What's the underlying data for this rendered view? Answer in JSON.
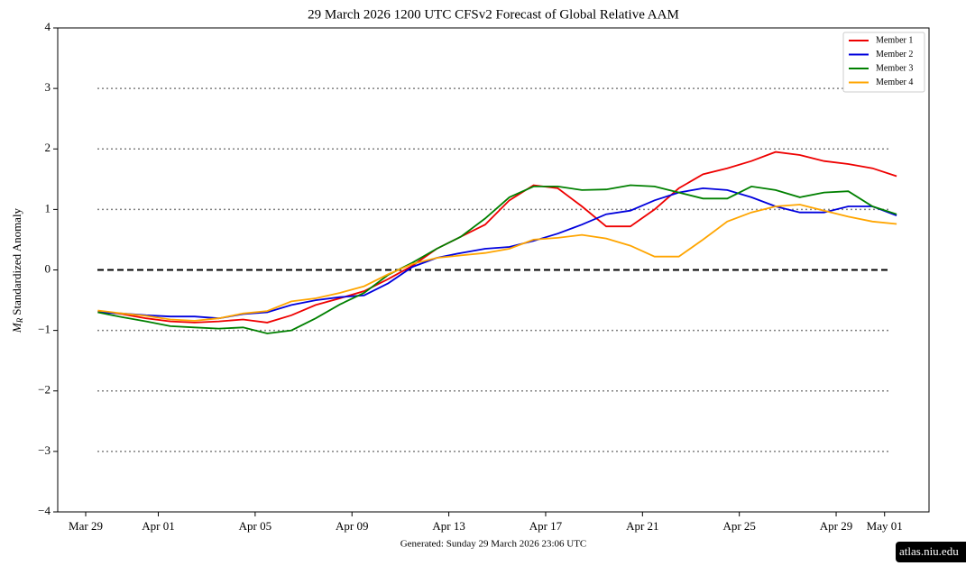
{
  "chart_data": {
    "type": "line",
    "title": "29  March  2026 1200 UTC   CFSv2 Forecast of Global Relative AAM",
    "footer": "Generated: Sunday  29  March  2026  23:06 UTC",
    "badge": "atlas.niu.edu",
    "ylabel": {
      "symbol": "M",
      "subscript": "R",
      "text": "Standardized Anomaly"
    },
    "x": [
      "Mar 29",
      "Mar 30",
      "Mar 31",
      "Apr 01",
      "Apr 02",
      "Apr 03",
      "Apr 04",
      "Apr 05",
      "Apr 06",
      "Apr 07",
      "Apr 08",
      "Apr 09",
      "Apr 10",
      "Apr 11",
      "Apr 12",
      "Apr 13",
      "Apr 14",
      "Apr 15",
      "Apr 16",
      "Apr 17",
      "Apr 18",
      "Apr 19",
      "Apr 20",
      "Apr 21",
      "Apr 22",
      "Apr 23",
      "Apr 24",
      "Apr 25",
      "Apr 26",
      "Apr 27",
      "Apr 28",
      "Apr 29",
      "Apr 30",
      "May 01"
    ],
    "xticks": [
      "Mar 29",
      "Apr 01",
      "Apr 05",
      "Apr 09",
      "Apr 13",
      "Apr 17",
      "Apr 21",
      "Apr 25",
      "Apr 29",
      "May 01"
    ],
    "series": [
      {
        "name": "Member 1",
        "color": "#ee0000",
        "values": [
          -0.68,
          -0.73,
          -0.8,
          -0.85,
          -0.87,
          -0.85,
          -0.82,
          -0.87,
          -0.75,
          -0.58,
          -0.47,
          -0.35,
          -0.15,
          0.07,
          0.35,
          0.55,
          0.75,
          1.15,
          1.4,
          1.35,
          1.05,
          0.72,
          0.72,
          1.0,
          1.35,
          1.58,
          1.68,
          1.8,
          1.95,
          1.9,
          1.8,
          1.75,
          1.68,
          1.55
        ]
      },
      {
        "name": "Member 2",
        "color": "#0000dd",
        "values": [
          -0.7,
          -0.72,
          -0.75,
          -0.77,
          -0.77,
          -0.8,
          -0.73,
          -0.7,
          -0.58,
          -0.5,
          -0.45,
          -0.42,
          -0.22,
          0.05,
          0.2,
          0.28,
          0.35,
          0.38,
          0.48,
          0.6,
          0.75,
          0.92,
          0.98,
          1.15,
          1.28,
          1.35,
          1.32,
          1.2,
          1.05,
          0.95,
          0.95,
          1.05,
          1.05,
          0.9
        ]
      },
      {
        "name": "Member 3",
        "color": "#008000",
        "values": [
          -0.7,
          -0.78,
          -0.85,
          -0.93,
          -0.95,
          -0.97,
          -0.95,
          -1.05,
          -1.0,
          -0.8,
          -0.57,
          -0.38,
          -0.08,
          0.12,
          0.35,
          0.55,
          0.85,
          1.2,
          1.38,
          1.38,
          1.32,
          1.33,
          1.4,
          1.38,
          1.28,
          1.18,
          1.18,
          1.38,
          1.32,
          1.2,
          1.28,
          1.3,
          1.05,
          0.92
        ]
      },
      {
        "name": "Member 4",
        "color": "#ffa500",
        "values": [
          -0.67,
          -0.72,
          -0.76,
          -0.82,
          -0.84,
          -0.8,
          -0.72,
          -0.68,
          -0.52,
          -0.47,
          -0.38,
          -0.27,
          -0.07,
          0.1,
          0.2,
          0.24,
          0.28,
          0.35,
          0.5,
          0.53,
          0.58,
          0.52,
          0.4,
          0.22,
          0.22,
          0.5,
          0.8,
          0.95,
          1.05,
          1.08,
          0.98,
          0.88,
          0.8,
          0.76
        ]
      }
    ],
    "ylim": [
      -4,
      4
    ],
    "yticks": [
      {
        "value": -4,
        "label": "−4"
      },
      {
        "value": -3,
        "label": "−3"
      },
      {
        "value": -2,
        "label": "−2"
      },
      {
        "value": -1,
        "label": "−1"
      },
      0,
      1,
      2,
      3,
      4
    ],
    "hlines": [
      {
        "y": -3,
        "style": "dotted"
      },
      {
        "y": -2,
        "style": "dotted"
      },
      {
        "y": -1,
        "style": "dotted"
      },
      {
        "y": 0,
        "style": "dashed"
      },
      {
        "y": 1,
        "style": "dotted"
      },
      {
        "y": 2,
        "style": "dotted"
      },
      {
        "y": 3,
        "style": "dotted"
      }
    ],
    "legend": "upper right"
  }
}
